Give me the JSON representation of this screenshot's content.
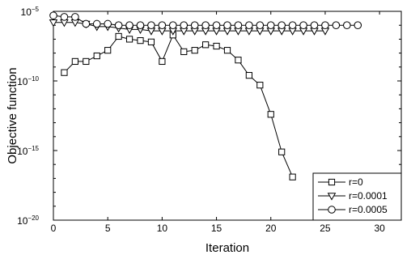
{
  "chart_data": {
    "type": "line",
    "title": "",
    "xlabel": "Iteration",
    "ylabel": "Objective function",
    "xlim": [
      0,
      32
    ],
    "ylim_log10": [
      -20,
      -5
    ],
    "y_scale": "log",
    "x_ticks": [
      0,
      5,
      10,
      15,
      20,
      25,
      30
    ],
    "x_tick_labels": [
      "0",
      "5",
      "10",
      "15",
      "20",
      "25",
      "30"
    ],
    "y_ticks_log10": [
      -20,
      -15,
      -10,
      -5
    ],
    "y_tick_base": "10",
    "y_tick_exponents": [
      "−20",
      "−15",
      "−10",
      "−5"
    ],
    "grid": false,
    "legend_position": "bottom-right",
    "series": [
      {
        "name": "r=0",
        "marker": "square",
        "x": [
          1,
          2,
          3,
          4,
          5,
          6,
          7,
          8,
          9,
          10,
          11,
          12,
          13,
          14,
          15,
          16,
          17,
          18,
          19,
          20,
          21,
          22
        ],
        "y_log10": [
          -9.4,
          -8.6,
          -8.6,
          -8.2,
          -7.8,
          -6.8,
          -7.0,
          -7.1,
          -7.2,
          -8.6,
          -6.7,
          -7.9,
          -7.8,
          -7.4,
          -7.5,
          -7.8,
          -8.5,
          -9.6,
          -10.3,
          -12.4,
          -15.1,
          -16.9
        ]
      },
      {
        "name": "r=0.0001",
        "marker": "triangle-down",
        "x": [
          0,
          1,
          2,
          3,
          4,
          5,
          6,
          7,
          8,
          9,
          10,
          11,
          12,
          13,
          14,
          15,
          16,
          17,
          18,
          19,
          20,
          21,
          22,
          23,
          24,
          25
        ],
        "y_log10": [
          -5.8,
          -5.8,
          -5.8,
          -5.9,
          -6.1,
          -6.1,
          -6.2,
          -6.3,
          -6.3,
          -6.4,
          -6.4,
          -6.4,
          -6.4,
          -6.4,
          -6.4,
          -6.4,
          -6.4,
          -6.4,
          -6.4,
          -6.4,
          -6.4,
          -6.4,
          -6.4,
          -6.4,
          -6.4,
          -6.4
        ]
      },
      {
        "name": "r=0.0005",
        "marker": "circle",
        "x": [
          0,
          1,
          2,
          3,
          4,
          5,
          6,
          7,
          8,
          9,
          10,
          11,
          12,
          13,
          14,
          15,
          16,
          17,
          18,
          19,
          20,
          21,
          22,
          23,
          24,
          25,
          26,
          27,
          28
        ],
        "y_log10": [
          -5.3,
          -5.4,
          -5.4,
          -5.9,
          -5.9,
          -5.9,
          -6.0,
          -6.0,
          -6.0,
          -6.0,
          -6.0,
          -6.0,
          -6.0,
          -6.0,
          -6.0,
          -6.0,
          -6.0,
          -6.0,
          -6.0,
          -6.0,
          -6.0,
          -6.0,
          -6.0,
          -6.0,
          -6.0,
          -6.0,
          -6.0,
          -6.0,
          -6.0
        ]
      }
    ]
  }
}
